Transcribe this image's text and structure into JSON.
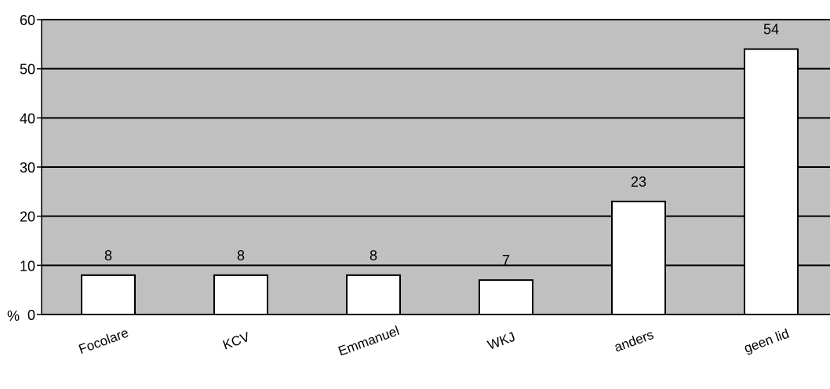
{
  "chart_data": {
    "type": "bar",
    "categories": [
      "Focolare",
      "KCV",
      "Emmanuel",
      "WKJ",
      "anders",
      "geen lid"
    ],
    "values": [
      8,
      8,
      8,
      7,
      23,
      54
    ],
    "data_labels": [
      "8",
      "8",
      "8",
      "7",
      "23",
      "54"
    ],
    "ylabel": "%",
    "ylim": [
      0,
      60
    ],
    "yticks": [
      0,
      10,
      20,
      30,
      40,
      50,
      60
    ],
    "grid": true,
    "legend": "none",
    "colors": {
      "plot_background": "#c0c0c0",
      "bar_fill": "#ffffff",
      "bar_stroke": "#000000",
      "gridline": "#000000"
    }
  }
}
